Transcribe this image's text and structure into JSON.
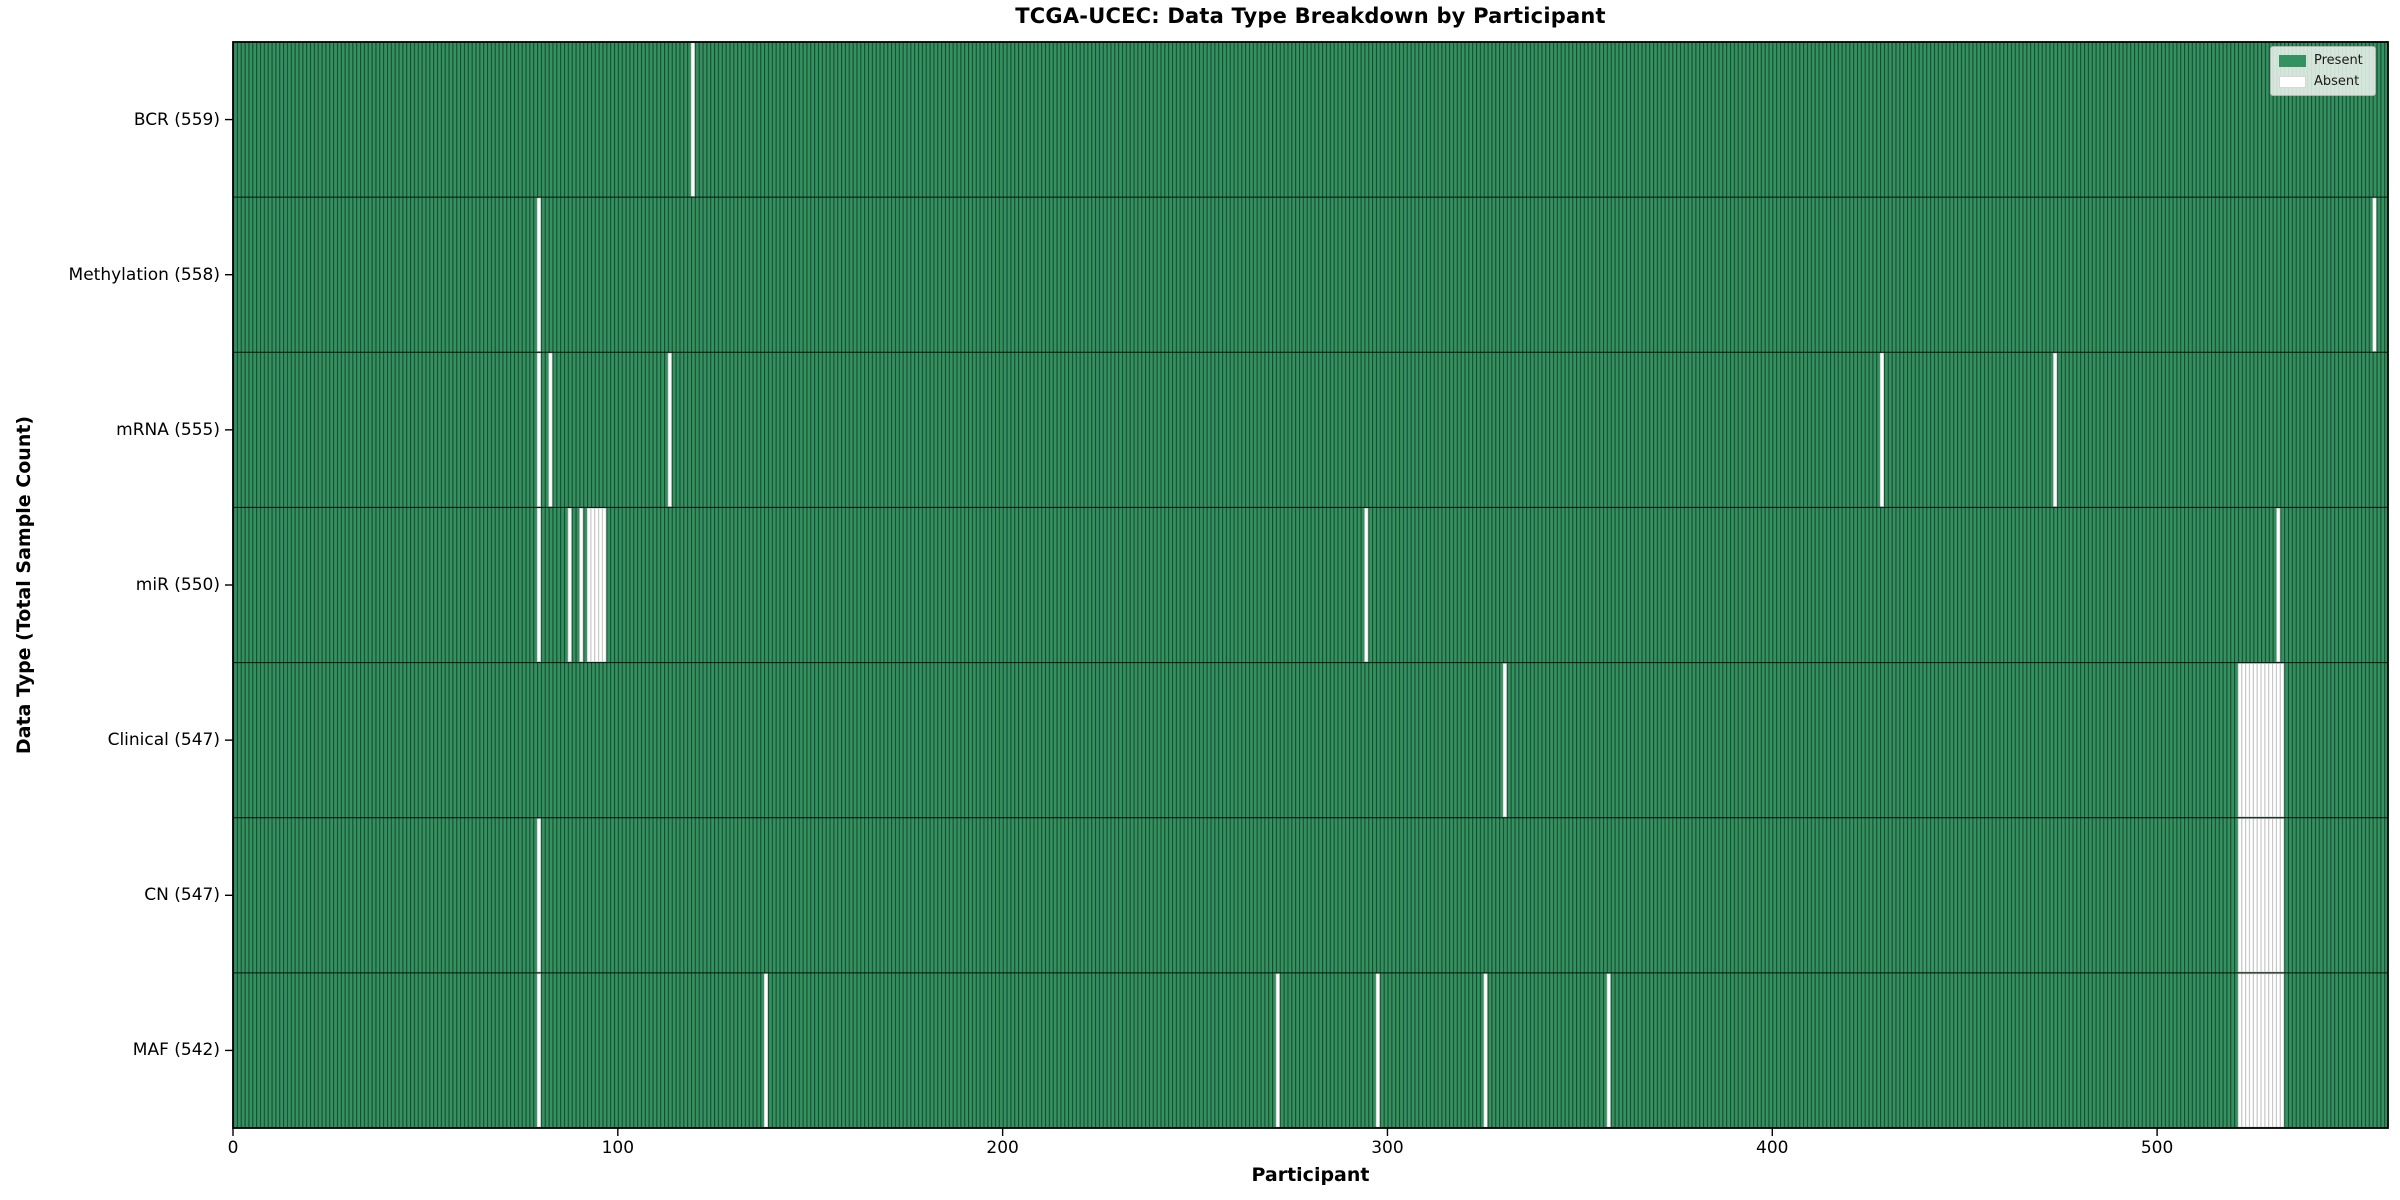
{
  "chart_data": {
    "type": "heatmap",
    "title": "TCGA-UCEC: Data Type Breakdown by Participant",
    "xlabel": "Participant",
    "ylabel": "Data Type (Total Sample Count)",
    "x_ticks": [
      0,
      100,
      200,
      300,
      400,
      500
    ],
    "xlim": [
      0,
      560
    ],
    "n_participants": 560,
    "grid": false,
    "legend_position": "upper right",
    "legend": [
      {
        "label": "Present",
        "color": "#339260"
      },
      {
        "label": "Absent",
        "color": "#ffffff"
      }
    ],
    "colors": {
      "present": "#339260",
      "absent": "#ffffff",
      "bar_edge": "#000000",
      "absent_bar_edge": "#c8c8c8",
      "axis": "#000000"
    },
    "rows": [
      {
        "data_type": "BCR",
        "label": "BCR (559)",
        "present_count": 559,
        "absent_participants": [
          119
        ]
      },
      {
        "data_type": "Methylation",
        "label": "Methylation (558)",
        "present_count": 558,
        "absent_participants": [
          79,
          556
        ]
      },
      {
        "data_type": "mRNA",
        "label": "mRNA (555)",
        "present_count": 555,
        "absent_participants": [
          79,
          82,
          113,
          428,
          473
        ]
      },
      {
        "data_type": "miR",
        "label": "miR (550)",
        "present_count": 550,
        "absent_participants": [
          79,
          87,
          90,
          92,
          93,
          94,
          95,
          96,
          294,
          531
        ]
      },
      {
        "data_type": "Clinical",
        "label": "Clinical (547)",
        "present_count": 547,
        "absent_participants": [
          330,
          521,
          522,
          523,
          524,
          525,
          526,
          527,
          528,
          529,
          530,
          531,
          532
        ]
      },
      {
        "data_type": "CN",
        "label": "CN (547)",
        "present_count": 547,
        "absent_participants": [
          79,
          521,
          522,
          523,
          524,
          525,
          526,
          527,
          528,
          529,
          530,
          531,
          532
        ]
      },
      {
        "data_type": "MAF",
        "label": "MAF (542)",
        "present_count": 542,
        "absent_participants": [
          79,
          138,
          271,
          297,
          325,
          357,
          521,
          522,
          523,
          524,
          525,
          526,
          527,
          528,
          529,
          530,
          531,
          532
        ]
      }
    ]
  }
}
